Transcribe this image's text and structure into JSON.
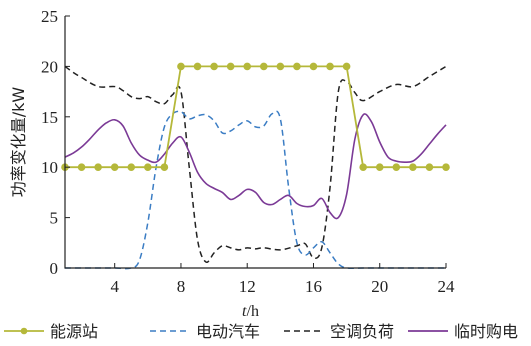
{
  "chart_data": {
    "type": "line",
    "xlabel_italic": "t",
    "xlabel_unit": "/h",
    "ylabel": "功率变化量/kW",
    "xlim": [
      1,
      24
    ],
    "ylim": [
      0,
      25
    ],
    "xticks": [
      4,
      8,
      12,
      16,
      20,
      24
    ],
    "yticks": [
      0,
      5,
      10,
      15,
      20,
      25
    ],
    "grid": false,
    "legend_position": "bottom",
    "series": [
      {
        "name": "能源站",
        "color": "#b5b83a",
        "style": "solid-marker",
        "x": [
          1,
          2,
          3,
          4,
          5,
          6,
          7,
          8,
          9,
          10,
          11,
          12,
          13,
          14,
          15,
          16,
          17,
          18,
          19,
          20,
          21,
          22,
          23,
          24
        ],
        "y": [
          10,
          10,
          10,
          10,
          10,
          10,
          10,
          20,
          20,
          20,
          20,
          20,
          20,
          20,
          20,
          20,
          20,
          20,
          10,
          10,
          10,
          10,
          10,
          10
        ]
      },
      {
        "name": "电动汽车",
        "color": "#3b7dc4",
        "style": "dashed",
        "x": [
          1,
          2,
          3,
          4,
          5,
          5.5,
          6,
          6.5,
          7,
          7.5,
          8,
          8.5,
          9,
          9.5,
          10,
          10.5,
          11,
          11.5,
          12,
          12.5,
          13,
          13.5,
          14,
          14.5,
          15,
          15.5,
          16,
          16.5,
          17,
          17.5,
          18,
          19,
          20,
          21,
          22,
          23,
          24
        ],
        "y": [
          0,
          0,
          0,
          0,
          0,
          0.8,
          4.5,
          10,
          14,
          15.3,
          15.5,
          14.8,
          15.1,
          15.2,
          14.6,
          13.4,
          13.6,
          14.2,
          14.6,
          14.0,
          14.1,
          15.3,
          14.8,
          8,
          2.5,
          1.3,
          2,
          2.6,
          1.5,
          0.4,
          0,
          0,
          0,
          0,
          0,
          0,
          0
        ]
      },
      {
        "name": "空调负荷",
        "color": "#222222",
        "style": "dashed",
        "x": [
          1,
          1.5,
          2,
          3,
          4,
          4.5,
          5,
          5.5,
          6,
          6.5,
          7,
          7.5,
          8,
          8.5,
          9,
          9.5,
          10,
          10.5,
          11,
          11.5,
          12,
          12.5,
          13,
          14,
          15,
          15.5,
          16,
          16.5,
          17,
          17.5,
          18,
          18.5,
          19,
          20,
          21,
          22,
          23,
          24
        ],
        "y": [
          20,
          19.4,
          18.9,
          18,
          18,
          17.6,
          17,
          16.8,
          17,
          16.5,
          16.3,
          17.2,
          17.5,
          10,
          2.8,
          0.6,
          1.5,
          2.2,
          2,
          1.8,
          2,
          1.9,
          2,
          1.8,
          2.2,
          2.4,
          1,
          2,
          8,
          17.5,
          18.5,
          17.4,
          16.6,
          17.5,
          18.2,
          18,
          19,
          20
        ]
      },
      {
        "name": "临时购电",
        "color": "#7b3a96",
        "style": "solid",
        "x": [
          1,
          1.5,
          2,
          2.5,
          3,
          3.5,
          4,
          4.5,
          5,
          5.5,
          6,
          6.5,
          7,
          7.5,
          8,
          8.5,
          9,
          9.5,
          10,
          10.5,
          11,
          11.5,
          12,
          12.5,
          13,
          13.5,
          14,
          14.5,
          15,
          15.5,
          16,
          16.5,
          17,
          17.5,
          18,
          18.5,
          19,
          19.5,
          20,
          20.5,
          21,
          21.5,
          22,
          22.5,
          23,
          23.5,
          24
        ],
        "y": [
          11,
          11.4,
          12,
          12.8,
          13.7,
          14.4,
          14.7,
          14.1,
          12.4,
          11.2,
          10.7,
          10.5,
          11.3,
          12.4,
          13,
          11.5,
          9.5,
          8.4,
          7.9,
          7.5,
          6.8,
          7.2,
          7.8,
          7.5,
          6.5,
          6.3,
          6.8,
          7.2,
          6.4,
          6.1,
          6.2,
          6.9,
          5.5,
          5,
          7.3,
          12.8,
          15.2,
          14.5,
          12.5,
          11.0,
          10.6,
          10.5,
          10.6,
          11.3,
          12.3,
          13.3,
          14.2
        ]
      }
    ]
  }
}
